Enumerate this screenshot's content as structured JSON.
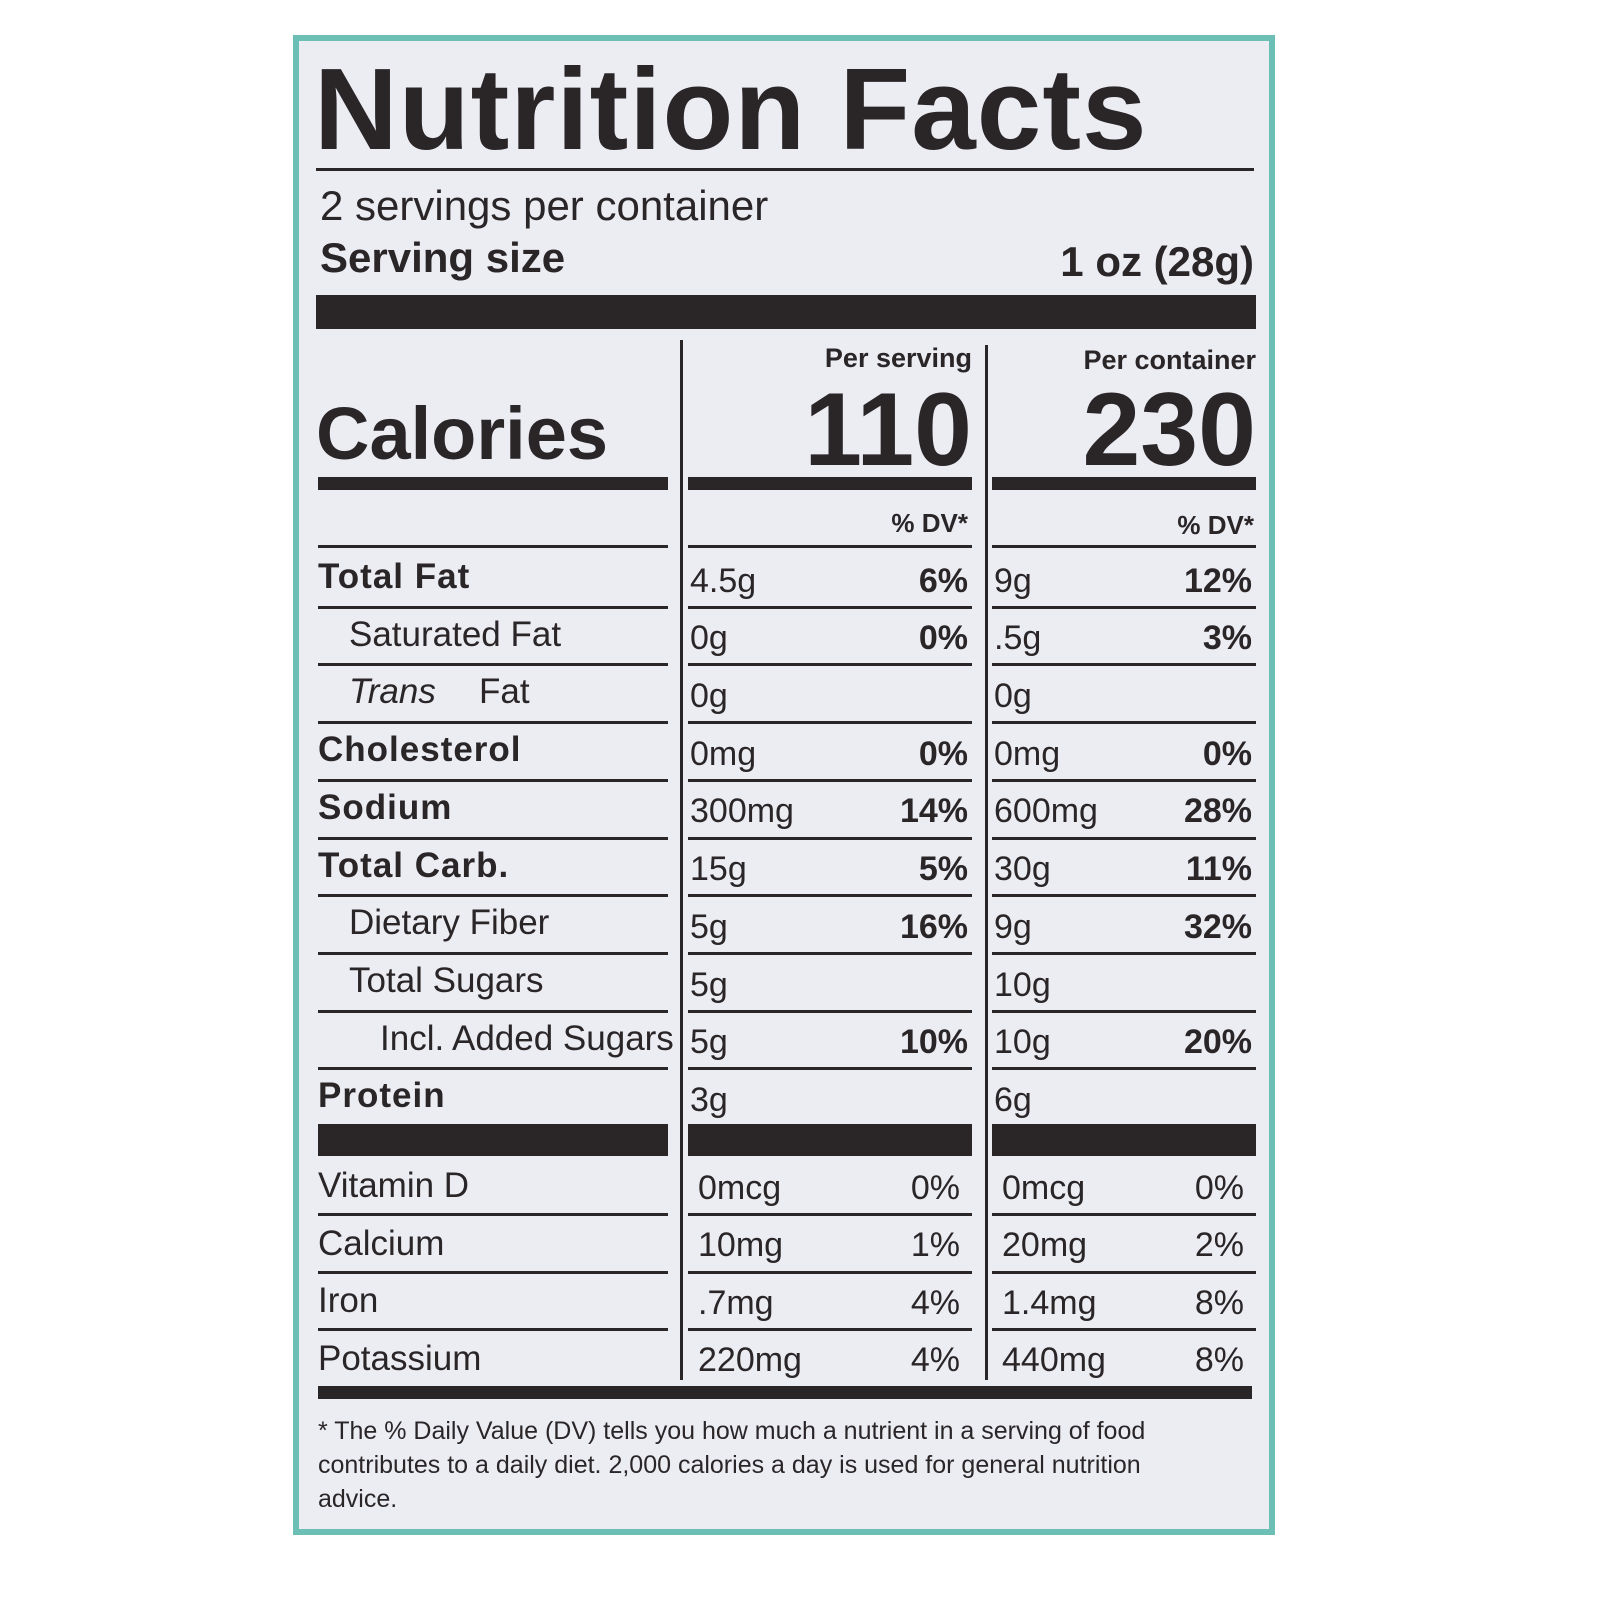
{
  "title": "Nutrition Facts",
  "servings": "2 servings per container",
  "serving_size": {
    "label": "Serving size",
    "value": "1 oz (28g)"
  },
  "columns": [
    "Per serving",
    "Per container"
  ],
  "calories": {
    "label": "Calories",
    "values": [
      "110",
      "230"
    ]
  },
  "dv_header": "% DV*",
  "nutrients": [
    {
      "name": "Total Fat",
      "bold": true,
      "indent": 0,
      "serving": [
        "4.5g",
        "6%"
      ],
      "container": [
        "9g",
        "12%"
      ]
    },
    {
      "name": "Saturated Fat",
      "bold": false,
      "indent": 1,
      "serving": [
        "0g",
        "0%"
      ],
      "container": [
        ".5g",
        "3%"
      ]
    },
    {
      "name_italic": "Trans",
      "name": "Fat",
      "bold": false,
      "indent": 1,
      "serving": [
        "0g"
      ],
      "container": [
        "0g"
      ]
    },
    {
      "name": "Cholesterol",
      "bold": true,
      "indent": 0,
      "serving": [
        "0mg",
        "0%"
      ],
      "container": [
        "0mg",
        "0%"
      ]
    },
    {
      "name": "Sodium",
      "bold": true,
      "indent": 0,
      "serving": [
        "300mg",
        "14%"
      ],
      "container": [
        "600mg",
        "28%"
      ]
    },
    {
      "name": "Total Carb.",
      "bold": true,
      "indent": 0,
      "serving": [
        "15g",
        "5%"
      ],
      "container": [
        "30g",
        "11%"
      ]
    },
    {
      "name": "Dietary Fiber",
      "bold": false,
      "indent": 1,
      "serving": [
        "5g",
        "16%"
      ],
      "container": [
        "9g",
        "32%"
      ]
    },
    {
      "name": "Total Sugars",
      "bold": false,
      "indent": 1,
      "serving": [
        "5g"
      ],
      "container": [
        "10g"
      ]
    },
    {
      "name": "Incl. Added Sugars",
      "bold": false,
      "indent": 2,
      "serving": [
        "5g",
        "10%"
      ],
      "container": [
        "10g",
        "20%"
      ]
    },
    {
      "name": "Protein",
      "bold": true,
      "indent": 0,
      "serving": [
        "3g"
      ],
      "container": [
        "6g"
      ]
    }
  ],
  "vitamins": [
    {
      "name": "Vitamin D",
      "serving": [
        "0mcg",
        "0%"
      ],
      "container": [
        "0mcg",
        "0%"
      ]
    },
    {
      "name": "Calcium",
      "serving": [
        "10mg",
        "1%"
      ],
      "container": [
        "20mg",
        "2%"
      ]
    },
    {
      "name": "Iron",
      "serving": [
        ".7mg",
        "4%"
      ],
      "container": [
        "1.4mg",
        "8%"
      ]
    },
    {
      "name": "Potassium",
      "serving": [
        "220mg",
        "4%"
      ],
      "container": [
        "440mg",
        "8%"
      ]
    }
  ],
  "footnote": "* The % Daily Value (DV) tells you how much a nutrient in a serving of food contributes to a daily diet. 2,000 calories a day is used for general nutrition advice."
}
